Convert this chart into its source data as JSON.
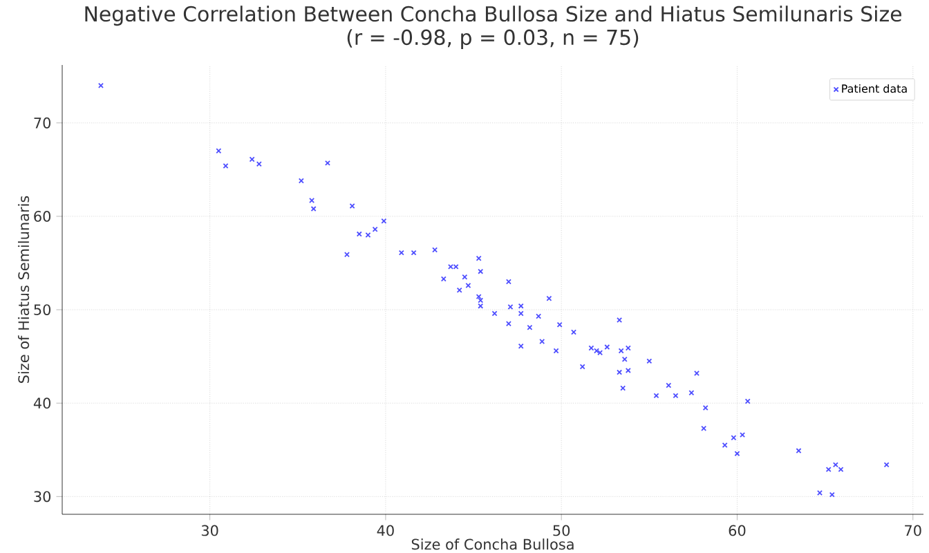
{
  "chart_data": {
    "type": "scatter",
    "title": "Negative Correlation Between Concha Bullosa Size and Hiatus Semilunaris Size",
    "subtitle": "(r = -0.98, p = 0.03, n = 75)",
    "xlabel": "Size of Concha Bullosa",
    "ylabel": "Size of Hiatus Semilunaris",
    "xlim": [
      21.6,
      70.6
    ],
    "ylim": [
      28.1,
      76.2
    ],
    "xticks": [
      30,
      40,
      50,
      60,
      70
    ],
    "yticks": [
      30,
      40,
      50,
      60,
      70
    ],
    "grid": true,
    "legend": "top right",
    "marker": "cross",
    "series": [
      {
        "name": "Patient data",
        "color": "#4d4dff",
        "x": [
          23.8,
          30.5,
          30.9,
          32.4,
          32.8,
          35.2,
          35.8,
          35.9,
          36.7,
          37.8,
          38.1,
          38.5,
          39.0,
          39.4,
          39.9,
          40.9,
          41.6,
          42.8,
          43.3,
          43.7,
          44.0,
          44.2,
          44.5,
          44.7,
          45.3,
          45.4,
          45.3,
          45.4,
          45.4,
          46.2,
          47.0,
          47.0,
          47.1,
          47.7,
          47.7,
          47.7,
          48.2,
          48.7,
          48.9,
          49.3,
          49.7,
          49.9,
          50.7,
          51.2,
          51.7,
          52.0,
          52.2,
          52.6,
          53.3,
          53.3,
          53.4,
          53.6,
          53.8,
          53.8,
          53.5,
          55.0,
          55.4,
          56.1,
          56.5,
          57.4,
          57.7,
          58.1,
          58.2,
          59.3,
          59.8,
          60.3,
          60.0,
          60.6,
          63.5,
          64.7,
          65.4,
          65.2,
          65.6,
          65.9,
          68.5
        ],
        "values": [
          74.0,
          67.0,
          65.4,
          66.1,
          65.6,
          63.8,
          61.7,
          60.8,
          65.7,
          55.9,
          61.1,
          58.1,
          58.0,
          58.6,
          59.5,
          56.1,
          56.1,
          56.4,
          53.3,
          54.6,
          54.6,
          52.1,
          53.5,
          52.6,
          55.5,
          54.1,
          51.4,
          51.0,
          50.4,
          49.6,
          53.0,
          48.5,
          50.3,
          50.4,
          49.6,
          46.1,
          48.1,
          49.3,
          46.6,
          51.2,
          45.6,
          48.4,
          47.6,
          43.9,
          45.9,
          45.6,
          45.4,
          46.0,
          48.9,
          43.3,
          45.6,
          44.7,
          45.9,
          43.5,
          41.6,
          44.5,
          40.8,
          41.9,
          40.8,
          41.1,
          43.2,
          37.3,
          39.5,
          35.5,
          36.3,
          36.6,
          34.6,
          40.2,
          34.9,
          30.4,
          30.2,
          32.9,
          33.4,
          32.9,
          33.4
        ]
      }
    ]
  }
}
